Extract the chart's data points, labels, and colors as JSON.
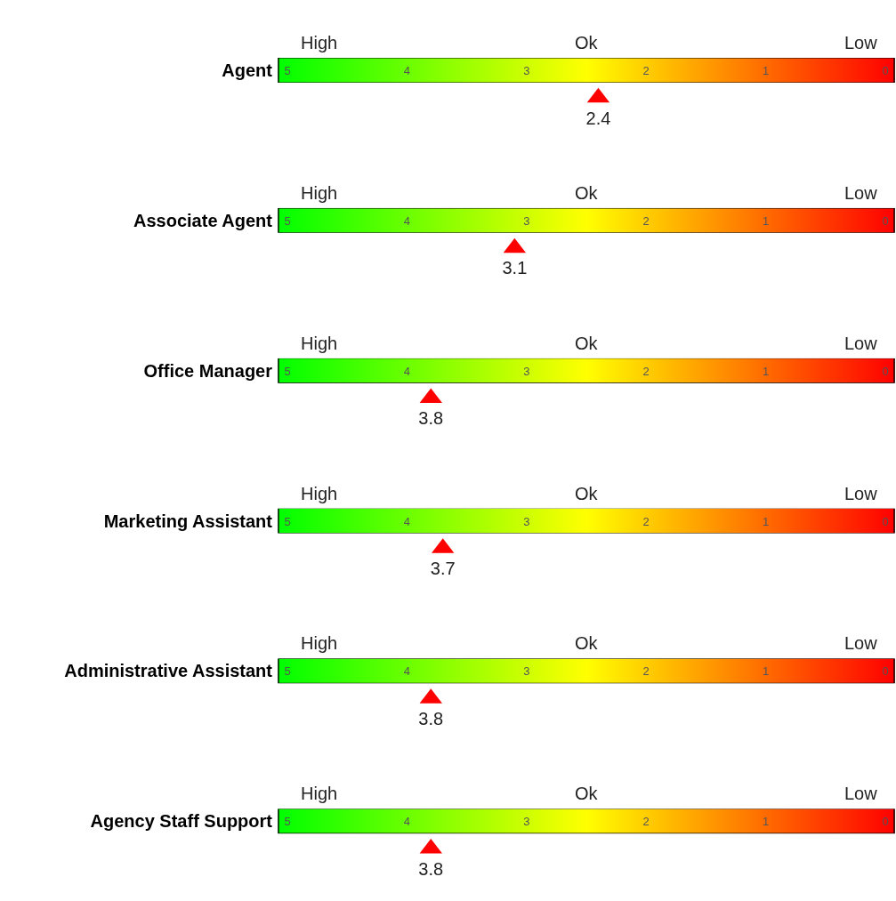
{
  "chart_data": [
    {
      "type": "scatter",
      "orientation": "horizontal",
      "categories": [
        "Agent"
      ],
      "values": [
        2.4
      ],
      "color": "#ff0000",
      "marker": "triangle",
      "data_labels": true,
      "xlim": [
        5,
        0
      ],
      "xticks": [
        5,
        4,
        3,
        2,
        1,
        0
      ],
      "annotations": [
        "High",
        "Ok",
        "Low"
      ]
    },
    {
      "type": "scatter",
      "orientation": "horizontal",
      "categories": [
        "Associate Agent"
      ],
      "values": [
        3.1
      ],
      "color": "#ff0000",
      "marker": "triangle",
      "data_labels": true,
      "xlim": [
        5,
        0
      ],
      "xticks": [
        5,
        4,
        3,
        2,
        1,
        0
      ],
      "annotations": [
        "High",
        "Ok",
        "Low"
      ]
    },
    {
      "type": "scatter",
      "orientation": "horizontal",
      "categories": [
        "Office Manager"
      ],
      "values": [
        3.8
      ],
      "color": "#ff0000",
      "marker": "triangle",
      "data_labels": true,
      "xlim": [
        5,
        0
      ],
      "xticks": [
        5,
        4,
        3,
        2,
        1,
        0
      ],
      "annotations": [
        "High",
        "Ok",
        "Low"
      ]
    },
    {
      "type": "scatter",
      "orientation": "horizontal",
      "categories": [
        "Marketing Assistant"
      ],
      "values": [
        3.7
      ],
      "color": "#ff0000",
      "marker": "triangle",
      "data_labels": true,
      "xlim": [
        5,
        0
      ],
      "xticks": [
        5,
        4,
        3,
        2,
        1,
        0
      ],
      "annotations": [
        "High",
        "Ok",
        "Low"
      ]
    },
    {
      "type": "scatter",
      "orientation": "horizontal",
      "categories": [
        "Administrative Assistant"
      ],
      "values": [
        3.8
      ],
      "color": "#ff0000",
      "marker": "triangle",
      "data_labels": true,
      "xlim": [
        5,
        0
      ],
      "xticks": [
        5,
        4,
        3,
        2,
        1,
        0
      ],
      "annotations": [
        "High",
        "Ok",
        "Low"
      ]
    },
    {
      "type": "scatter",
      "orientation": "horizontal",
      "categories": [
        "Agency Staff Support"
      ],
      "values": [
        3.8
      ],
      "color": "#ff0000",
      "marker": "triangle",
      "data_labels": true,
      "xlim": [
        5,
        0
      ],
      "xticks": [
        5,
        4,
        3,
        2,
        1,
        0
      ],
      "annotations": [
        "High",
        "Ok",
        "Low"
      ]
    }
  ]
}
